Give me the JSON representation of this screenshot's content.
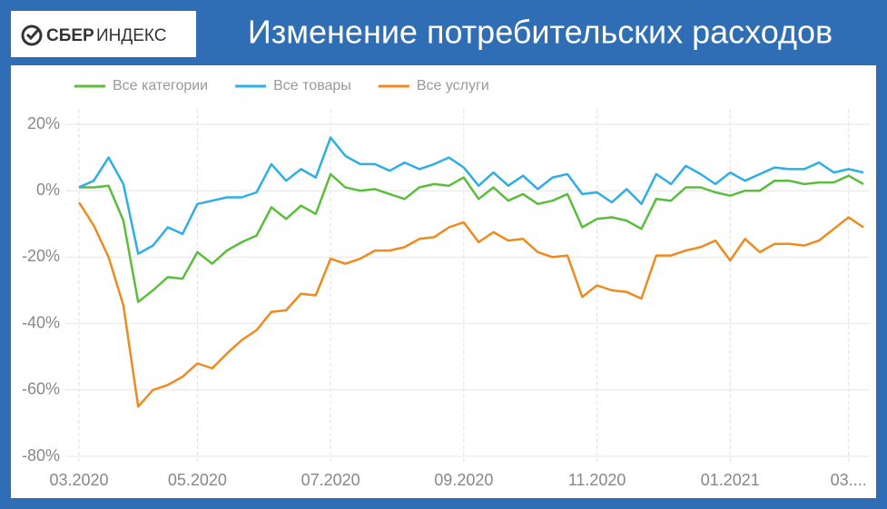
{
  "logo": {
    "primary": "СБЕР",
    "secondary": "ИНДЕКС"
  },
  "chart_data": {
    "type": "line",
    "title": "Изменение потребительских расходов",
    "categories": [
      "03.2020",
      null,
      null,
      null,
      null,
      null,
      null,
      null,
      "05.2020",
      null,
      null,
      null,
      null,
      null,
      null,
      null,
      null,
      "07.2020",
      null,
      null,
      null,
      null,
      null,
      null,
      null,
      null,
      "09.2020",
      null,
      null,
      null,
      null,
      null,
      null,
      null,
      null,
      "11.2020",
      null,
      null,
      null,
      null,
      null,
      null,
      null,
      null,
      "01.2021",
      null,
      null,
      null,
      null,
      null,
      null,
      null,
      "03....",
      null
    ],
    "series": [
      {
        "name": "Все категории",
        "color": "#5bbd3c",
        "values": [
          1,
          1,
          1.5,
          -9,
          -33.5,
          -30,
          -26,
          -26.5,
          -18.5,
          -22,
          -18,
          -15.5,
          -13.5,
          -5,
          -8.5,
          -4.5,
          -7,
          5,
          1,
          0,
          0.5,
          -1,
          -2.5,
          1,
          2,
          1.5,
          4,
          -2.5,
          1,
          -3,
          -1,
          -4,
          -3,
          -1,
          -11,
          -8.5,
          -8,
          -9,
          -11.5,
          -2.5,
          -3,
          1,
          1,
          -0.5,
          -1.5,
          0,
          0,
          3,
          3,
          2,
          2.5,
          2.5,
          4.5,
          2
        ]
      },
      {
        "name": "Все товары",
        "color": "#2eaee6",
        "values": [
          1,
          3,
          10,
          2,
          -19,
          -16.5,
          -11,
          -13,
          -4,
          -3,
          -2,
          -2,
          -0.5,
          8,
          3,
          6.5,
          4,
          16,
          10.5,
          8,
          8,
          6,
          8.5,
          6.5,
          8,
          10,
          7,
          1.5,
          5.5,
          1.5,
          4.5,
          0.5,
          4,
          5,
          -1,
          -0.5,
          -3.5,
          0.5,
          -4,
          5,
          2,
          7.5,
          5,
          2,
          5.5,
          3,
          5,
          7,
          6.5,
          6.5,
          8.5,
          5.5,
          6.5,
          5.5
        ]
      },
      {
        "name": "Все услуги",
        "color": "#ef8a1e",
        "values": [
          -3.5,
          -10.5,
          -20,
          -34.5,
          -65,
          -60,
          -58.5,
          -56,
          -52,
          -53.5,
          -49,
          -45,
          -42,
          -36.5,
          -36,
          -31,
          -31.5,
          -20.5,
          -22,
          -20.5,
          -18,
          -18,
          -17,
          -14.5,
          -14,
          -11,
          -9.5,
          -15.5,
          -12.5,
          -15,
          -14.5,
          -18.5,
          -20,
          -19.5,
          -32,
          -28.5,
          -30,
          -30.5,
          -32.5,
          -19.5,
          -19.5,
          -18,
          -17,
          -15,
          -21,
          -14.5,
          -18.5,
          -16,
          -16,
          -16.5,
          -15,
          -11.5,
          -8,
          -11
        ]
      }
    ],
    "ylim": [
      -80,
      20
    ],
    "yticks": [
      {
        "value": -80,
        "label": "-80%"
      },
      {
        "value": -60,
        "label": "-60%"
      },
      {
        "value": -40,
        "label": "-40%"
      },
      {
        "value": -20,
        "label": "-20%"
      },
      {
        "value": 0,
        "label": "0%"
      },
      {
        "value": 20,
        "label": "20%"
      }
    ],
    "grid": true,
    "legend": "top-left"
  }
}
